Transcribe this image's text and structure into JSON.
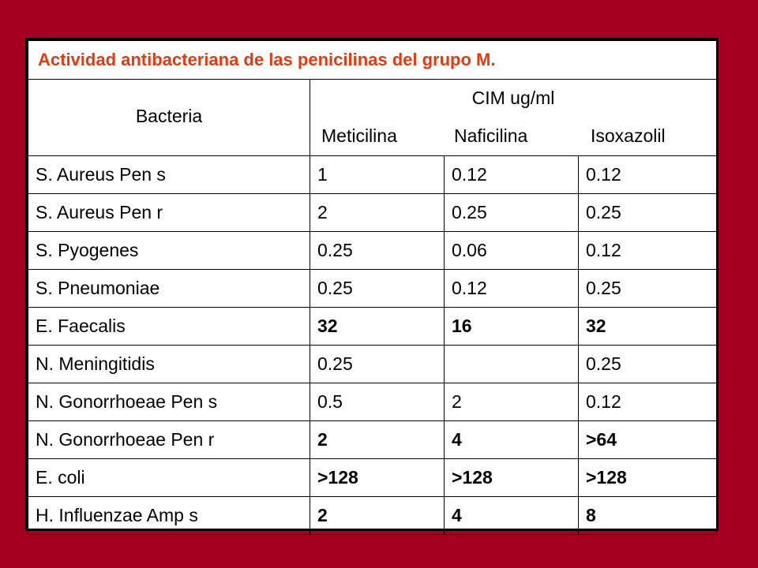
{
  "table": {
    "title": "Actividad antibacteriana de las penicilinas del grupo M.",
    "bacteria_header": "Bacteria",
    "cim_header": "CIM ug/ml",
    "drug_headers": [
      "Meticilina",
      "Naficilina",
      "Isoxazolil"
    ],
    "rows": [
      {
        "bacteria": "S. Aureus Pen s",
        "values": [
          "1",
          "0.12",
          "0.12"
        ],
        "bold": false
      },
      {
        "bacteria": "S. Aureus Pen r",
        "values": [
          "2",
          "0.25",
          "0.25"
        ],
        "bold": false
      },
      {
        "bacteria": "S. Pyogenes",
        "values": [
          "0.25",
          "0.06",
          "0.12"
        ],
        "bold": false
      },
      {
        "bacteria": "S. Pneumoniae",
        "values": [
          "0.25",
          "0.12",
          "0.25"
        ],
        "bold": false
      },
      {
        "bacteria": "E. Faecalis",
        "values": [
          "32",
          "16",
          "32"
        ],
        "bold": true
      },
      {
        "bacteria": "N. Meningitidis",
        "values": [
          "0.25",
          "",
          "0.25"
        ],
        "bold": false
      },
      {
        "bacteria": "N. Gonorrhoeae Pen s",
        "values": [
          "0.5",
          "2",
          "0.12"
        ],
        "bold": false
      },
      {
        "bacteria": "N. Gonorrhoeae Pen r",
        "values": [
          "2",
          "4",
          ">64"
        ],
        "bold": true
      },
      {
        "bacteria": "E. coli",
        "values": [
          ">128",
          ">128",
          ">128"
        ],
        "bold": true
      },
      {
        "bacteria": "H. Influenzae Amp s",
        "values": [
          "2",
          "4",
          "8"
        ],
        "bold": true
      }
    ]
  },
  "colors": {
    "background": "#a50021",
    "title_text": "#e8380d",
    "table_background": "#ffffff"
  }
}
